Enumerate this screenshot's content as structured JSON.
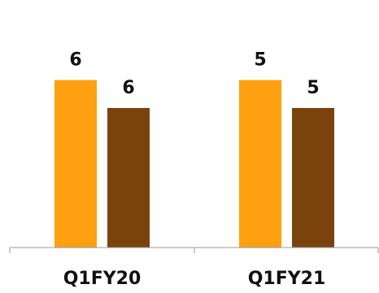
{
  "chart_data": {
    "type": "bar",
    "categories": [
      "Q1FY20",
      "Q1FY21"
    ],
    "series": [
      {
        "values": [
          6,
          6
        ],
        "color": "#FFA010"
      },
      {
        "values": [
          5,
          5
        ],
        "color": "#7B430C"
      }
    ],
    "data_labels": [
      [
        "6",
        "5"
      ],
      [
        "6",
        "5"
      ]
    ],
    "title": "",
    "xlabel": "",
    "ylabel": "",
    "ylim": [
      0,
      7.85
    ],
    "grid": false,
    "legend": "none",
    "colors": {
      "axis": "#999999",
      "label_text": "#111111"
    }
  }
}
